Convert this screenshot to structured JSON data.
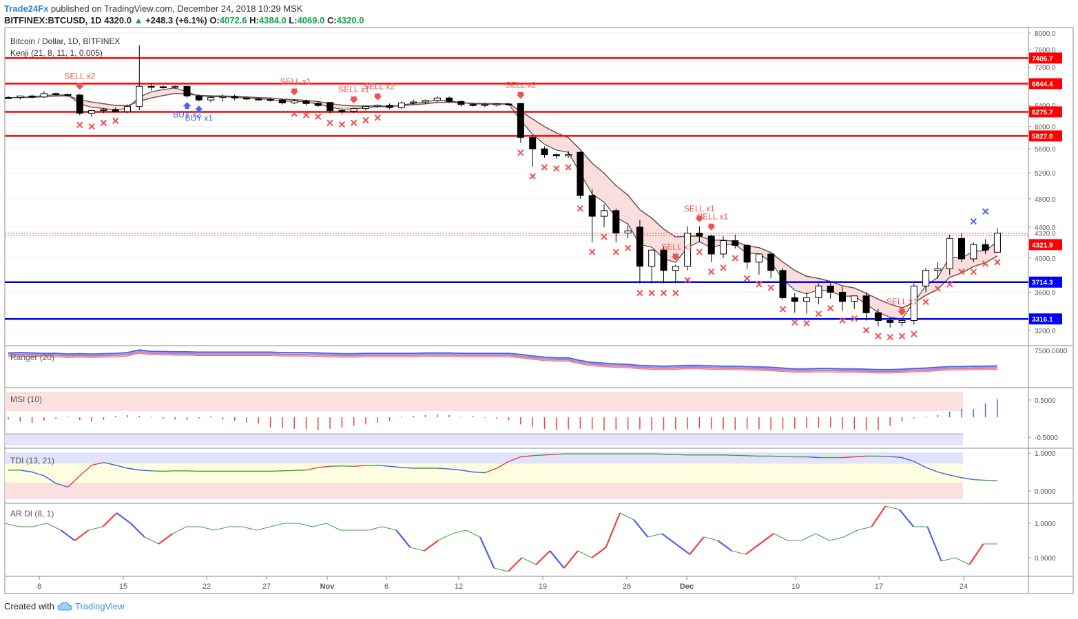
{
  "header": {
    "brand": "Trade24Fx",
    "published": " published on TradingView.com, December 24, 2018 10:29 MSK",
    "symbol": "BITFINEX:BTCUSD, 1D",
    "price": "4320.0",
    "arrow": "▲",
    "change": "+248.3 (+6.1%)",
    "o_label": "O:",
    "o": "4072.6",
    "h_label": "H:",
    "h": "4384.0",
    "l_label": "L:",
    "l": "4069.0",
    "c_label": "C:",
    "c": "4320.0"
  },
  "footer": {
    "created": "Created with",
    "logo": "TradingView"
  },
  "colors": {
    "bull": "#ffffff",
    "bear": "#000000",
    "red_level": "#ff0000",
    "blue_level": "#0000ff",
    "sell": "#f05050",
    "buy": "#4a62f0",
    "cloud": "#fadddd"
  },
  "chart_data": [
    {
      "type": "candlestick",
      "name": "main",
      "title": "Bitcoin / Dollar, 1D, BITFINEX",
      "indicator": "Kenji (21, 8, 11, 1, 0.005)",
      "y_scale": "log",
      "ylim": [
        3000,
        8000
      ],
      "y_ticks": [
        "8000.0",
        "7600.0",
        "7200.0",
        "6800.0",
        "6400.0",
        "6000.0",
        "5600.0",
        "5200.0",
        "4800.0",
        "4400.0",
        "4000.0",
        "3600.0",
        "3200.0"
      ],
      "x_ticks": [
        "8",
        "15",
        "22",
        "27",
        "Nov",
        "6",
        "12",
        "19",
        "26",
        "Dec",
        "10",
        "17",
        "24"
      ],
      "candles": [
        [
          6560,
          6590,
          6530,
          6550
        ],
        [
          6560,
          6600,
          6520,
          6590
        ],
        [
          6590,
          6620,
          6540,
          6570
        ],
        [
          6570,
          6690,
          6550,
          6640
        ],
        [
          6640,
          6660,
          6580,
          6620
        ],
        [
          6620,
          6640,
          6570,
          6610
        ],
        [
          6610,
          6630,
          6210,
          6250
        ],
        [
          6250,
          6320,
          6180,
          6300
        ],
        [
          6300,
          6350,
          6250,
          6320
        ],
        [
          6320,
          6360,
          6290,
          6280
        ],
        [
          6280,
          6420,
          6250,
          6380
        ],
        [
          6380,
          7700,
          6310,
          6790
        ],
        [
          6790,
          6860,
          6700,
          6780
        ],
        [
          6780,
          6810,
          6740,
          6770
        ],
        [
          6770,
          6810,
          6730,
          6790
        ],
        [
          6790,
          6800,
          6550,
          6590
        ],
        [
          6590,
          6620,
          6480,
          6510
        ],
        [
          6510,
          6600,
          6460,
          6560
        ],
        [
          6560,
          6620,
          6480,
          6580
        ],
        [
          6580,
          6620,
          6500,
          6550
        ],
        [
          6550,
          6580,
          6510,
          6530
        ],
        [
          6530,
          6560,
          6500,
          6520
        ],
        [
          6520,
          6560,
          6480,
          6510
        ],
        [
          6510,
          6540,
          6420,
          6450
        ],
        [
          6450,
          6520,
          6430,
          6490
        ],
        [
          6490,
          6520,
          6400,
          6440
        ],
        [
          6440,
          6480,
          6370,
          6400
        ],
        [
          6460,
          6460,
          6250,
          6300
        ],
        [
          6300,
          6340,
          6220,
          6290
        ],
        [
          6290,
          6360,
          6250,
          6340
        ],
        [
          6340,
          6400,
          6300,
          6380
        ],
        [
          6380,
          6420,
          6350,
          6400
        ],
        [
          6400,
          6440,
          6320,
          6360
        ],
        [
          6360,
          6480,
          6330,
          6450
        ],
        [
          6450,
          6520,
          6410,
          6470
        ],
        [
          6470,
          6520,
          6430,
          6500
        ],
        [
          6500,
          6580,
          6460,
          6550
        ],
        [
          6550,
          6580,
          6450,
          6480
        ],
        [
          6480,
          6500,
          6380,
          6420
        ],
        [
          6420,
          6450,
          6380,
          6410
        ],
        [
          6410,
          6450,
          6360,
          6420
        ],
        [
          6420,
          6450,
          6380,
          6430
        ],
        [
          6430,
          6450,
          6400,
          6420
        ],
        [
          6440,
          6450,
          5700,
          5800
        ],
        [
          5800,
          5840,
          5300,
          5600
        ],
        [
          5600,
          5640,
          5450,
          5500
        ],
        [
          5500,
          5520,
          5430,
          5480
        ],
        [
          5480,
          5560,
          5450,
          5500
        ],
        [
          5540,
          5560,
          4800,
          4850
        ],
        [
          4850,
          4950,
          4200,
          4550
        ],
        [
          4550,
          4720,
          4400,
          4630
        ],
        [
          4630,
          4660,
          4200,
          4320
        ],
        [
          4320,
          4420,
          4250,
          4350
        ],
        [
          4400,
          4500,
          3700,
          3900
        ],
        [
          3900,
          4100,
          3700,
          4100
        ],
        [
          4100,
          4150,
          3700,
          3850
        ],
        [
          3850,
          3920,
          3700,
          3900
        ],
        [
          3900,
          4410,
          3850,
          4320
        ],
        [
          4320,
          4410,
          4200,
          4280
        ],
        [
          4280,
          4300,
          3950,
          4050
        ],
        [
          4050,
          4280,
          4000,
          4220
        ],
        [
          4220,
          4300,
          4120,
          4160
        ],
        [
          4160,
          4180,
          3870,
          3950
        ],
        [
          3950,
          4020,
          3800,
          4050
        ],
        [
          4050,
          4060,
          3760,
          3850
        ],
        [
          3850,
          3880,
          3520,
          3540
        ],
        [
          3540,
          3590,
          3380,
          3500
        ],
        [
          3500,
          3600,
          3370,
          3540
        ],
        [
          3540,
          3700,
          3470,
          3670
        ],
        [
          3670,
          3720,
          3530,
          3600
        ],
        [
          3600,
          3660,
          3400,
          3500
        ],
        [
          3500,
          3560,
          3420,
          3560
        ],
        [
          3560,
          3600,
          3300,
          3380
        ],
        [
          3380,
          3420,
          3240,
          3300
        ],
        [
          3300,
          3330,
          3230,
          3280
        ],
        [
          3280,
          3310,
          3240,
          3300
        ],
        [
          3300,
          3700,
          3260,
          3670
        ],
        [
          3670,
          3880,
          3600,
          3850
        ],
        [
          3850,
          3950,
          3750,
          3870
        ],
        [
          3870,
          4300,
          3800,
          4250
        ],
        [
          4250,
          4320,
          3950,
          3990
        ],
        [
          3990,
          4200,
          3950,
          4170
        ],
        [
          4170,
          4240,
          4050,
          4100
        ],
        [
          4072.6,
          4384,
          4069,
          4320
        ]
      ],
      "last_price": "4320.0",
      "price_label": "4321.9",
      "levels": [
        {
          "value": 7406.7,
          "label": "7406.7",
          "color": "#ff0000"
        },
        {
          "value": 6844.4,
          "label": "6844.4",
          "color": "#ff0000"
        },
        {
          "value": 6275.7,
          "label": "6275.7",
          "color": "#ff0000"
        },
        {
          "value": 5827.0,
          "label": "5827.0",
          "color": "#ff0000"
        },
        {
          "value": 3714.3,
          "label": "3714.3",
          "color": "#0000ff"
        },
        {
          "value": 3316.1,
          "label": "3316.1",
          "color": "#0000ff"
        }
      ],
      "signals": [
        {
          "index": 6,
          "text": "SELL x2",
          "type": "sell"
        },
        {
          "index": 15,
          "text": "BUY x2",
          "type": "buy"
        },
        {
          "index": 16,
          "text": "BUY x1",
          "type": "buy"
        },
        {
          "index": 24,
          "text": "SELL x1",
          "type": "sell"
        },
        {
          "index": 29,
          "text": "SELL x1",
          "type": "sell"
        },
        {
          "index": 31,
          "text": "SELL x2",
          "type": "sell"
        },
        {
          "index": 43,
          "text": "SELL x2",
          "type": "sell"
        },
        {
          "index": 56,
          "text": "SELL x1",
          "type": "sell"
        },
        {
          "index": 58,
          "text": "SELL x1",
          "type": "sell"
        },
        {
          "index": 59,
          "text": "SELL x1",
          "type": "sell"
        },
        {
          "index": 75,
          "text": "SELL x1",
          "type": "sell"
        }
      ],
      "marker_indices": [
        6,
        7,
        8,
        9,
        24,
        25,
        26,
        27,
        28,
        29,
        30,
        31,
        43,
        44,
        45,
        46,
        47,
        48,
        49,
        50,
        51,
        52,
        53,
        54,
        55,
        56,
        57,
        58,
        59,
        60,
        61,
        62,
        63,
        64,
        65,
        66,
        67,
        68,
        69,
        70,
        71,
        72,
        73,
        74,
        75,
        76,
        77,
        78,
        79,
        80,
        81,
        82,
        83
      ]
    },
    {
      "type": "line",
      "name": "Ranger (20)",
      "y_ticks": [
        "7500.0000"
      ],
      "series": [
        {
          "values": [
            0.82,
            0.83,
            0.82,
            0.81,
            0.81,
            0.79,
            0.8,
            0.79,
            0.8,
            0.81,
            0.83,
            0.9,
            0.86,
            0.86,
            0.85,
            0.85,
            0.84,
            0.84,
            0.84,
            0.84,
            0.84,
            0.84,
            0.84,
            0.83,
            0.83,
            0.83,
            0.82,
            0.81,
            0.8,
            0.8,
            0.81,
            0.81,
            0.81,
            0.81,
            0.81,
            0.82,
            0.82,
            0.82,
            0.81,
            0.81,
            0.81,
            0.81,
            0.81,
            0.78,
            0.74,
            0.71,
            0.69,
            0.69,
            0.62,
            0.57,
            0.55,
            0.53,
            0.52,
            0.49,
            0.48,
            0.47,
            0.48,
            0.49,
            0.49,
            0.48,
            0.47,
            0.47,
            0.46,
            0.45,
            0.44,
            0.42,
            0.4,
            0.4,
            0.41,
            0.41,
            0.4,
            0.4,
            0.39,
            0.38,
            0.38,
            0.39,
            0.41,
            0.42,
            0.44,
            0.46,
            0.46,
            0.47,
            0.47,
            0.48
          ]
        }
      ]
    },
    {
      "type": "bar",
      "name": "MSI (10)",
      "y_ticks": [
        "0.5000",
        "-0.5000"
      ],
      "values": [
        -0.08,
        -0.15,
        -0.2,
        -0.12,
        -0.05,
        0.03,
        -0.1,
        -0.15,
        -0.1,
        0.05,
        0.07,
        0.05,
        0.02,
        -0.05,
        -0.08,
        -0.1,
        -0.05,
        0.04,
        -0.08,
        -0.12,
        -0.18,
        -0.22,
        -0.35,
        -0.38,
        -0.4,
        -0.42,
        -0.45,
        -0.4,
        -0.35,
        -0.3,
        -0.25,
        -0.2,
        -0.12,
        0.03,
        0.05,
        0.08,
        0.1,
        0.08,
        0.02,
        0.04,
        -0.02,
        -0.06,
        -0.1,
        -0.25,
        -0.32,
        -0.4,
        -0.45,
        -0.42,
        -0.4,
        -0.42,
        -0.45,
        -0.43,
        -0.44,
        -0.42,
        -0.45,
        -0.45,
        -0.42,
        -0.4,
        -0.38,
        -0.4,
        -0.42,
        -0.43,
        -0.4,
        -0.42,
        -0.45,
        -0.42,
        -0.4,
        -0.38,
        -0.36,
        -0.35,
        -0.4,
        -0.42,
        -0.45,
        -0.45,
        -0.3,
        -0.15,
        -0.03,
        0.02,
        0.08,
        0.2,
        0.28,
        0.28,
        0.48,
        0.62
      ]
    },
    {
      "type": "line",
      "name": "TDI (13, 21)",
      "y_ticks": [
        "1.0000",
        "0.0000"
      ],
      "series": [
        {
          "values": [
            0.55,
            0.55,
            0.5,
            0.4,
            0.2,
            0.1,
            0.4,
            0.68,
            0.75,
            0.68,
            0.6,
            0.55,
            0.53,
            0.52,
            0.53,
            0.53,
            0.52,
            0.52,
            0.52,
            0.52,
            0.52,
            0.52,
            0.52,
            0.53,
            0.54,
            0.55,
            0.62,
            0.65,
            0.66,
            0.65,
            0.67,
            0.68,
            0.65,
            0.62,
            0.6,
            0.6,
            0.6,
            0.58,
            0.55,
            0.5,
            0.48,
            0.6,
            0.78,
            0.9,
            0.93,
            0.95,
            0.97,
            0.98,
            0.98,
            0.98,
            0.98,
            0.98,
            0.98,
            0.98,
            0.98,
            0.97,
            0.96,
            0.95,
            0.95,
            0.95,
            0.95,
            0.94,
            0.93,
            0.92,
            0.92,
            0.91,
            0.9,
            0.9,
            0.88,
            0.88,
            0.88,
            0.9,
            0.92,
            0.92,
            0.91,
            0.88,
            0.78,
            0.62,
            0.5,
            0.42,
            0.35,
            0.3,
            0.28,
            0.27
          ]
        }
      ]
    },
    {
      "type": "line",
      "name": "AR DI (8, 1)",
      "y_ticks": [
        "1.0000",
        "0.9000"
      ],
      "series": [
        {
          "values": [
            1.0,
            0.99,
            0.99,
            1.0,
            0.98,
            0.95,
            0.98,
            0.99,
            1.03,
            1.0,
            0.96,
            0.94,
            0.97,
            0.99,
            0.99,
            0.98,
            0.99,
            0.99,
            0.98,
            0.99,
            1.0,
            1.0,
            0.99,
            1.0,
            0.98,
            0.98,
            0.98,
            0.99,
            0.98,
            0.93,
            0.92,
            0.95,
            0.97,
            0.98,
            0.96,
            0.87,
            0.86,
            0.9,
            0.88,
            0.92,
            0.87,
            0.92,
            0.9,
            0.93,
            1.03,
            1.01,
            0.96,
            0.97,
            0.94,
            0.91,
            0.96,
            0.95,
            0.92,
            0.91,
            0.94,
            0.97,
            0.95,
            0.95,
            0.97,
            0.95,
            0.96,
            0.98,
            0.99,
            1.05,
            1.04,
            0.99,
            0.99,
            0.89,
            0.9,
            0.88,
            0.94,
            0.94
          ]
        }
      ]
    }
  ]
}
